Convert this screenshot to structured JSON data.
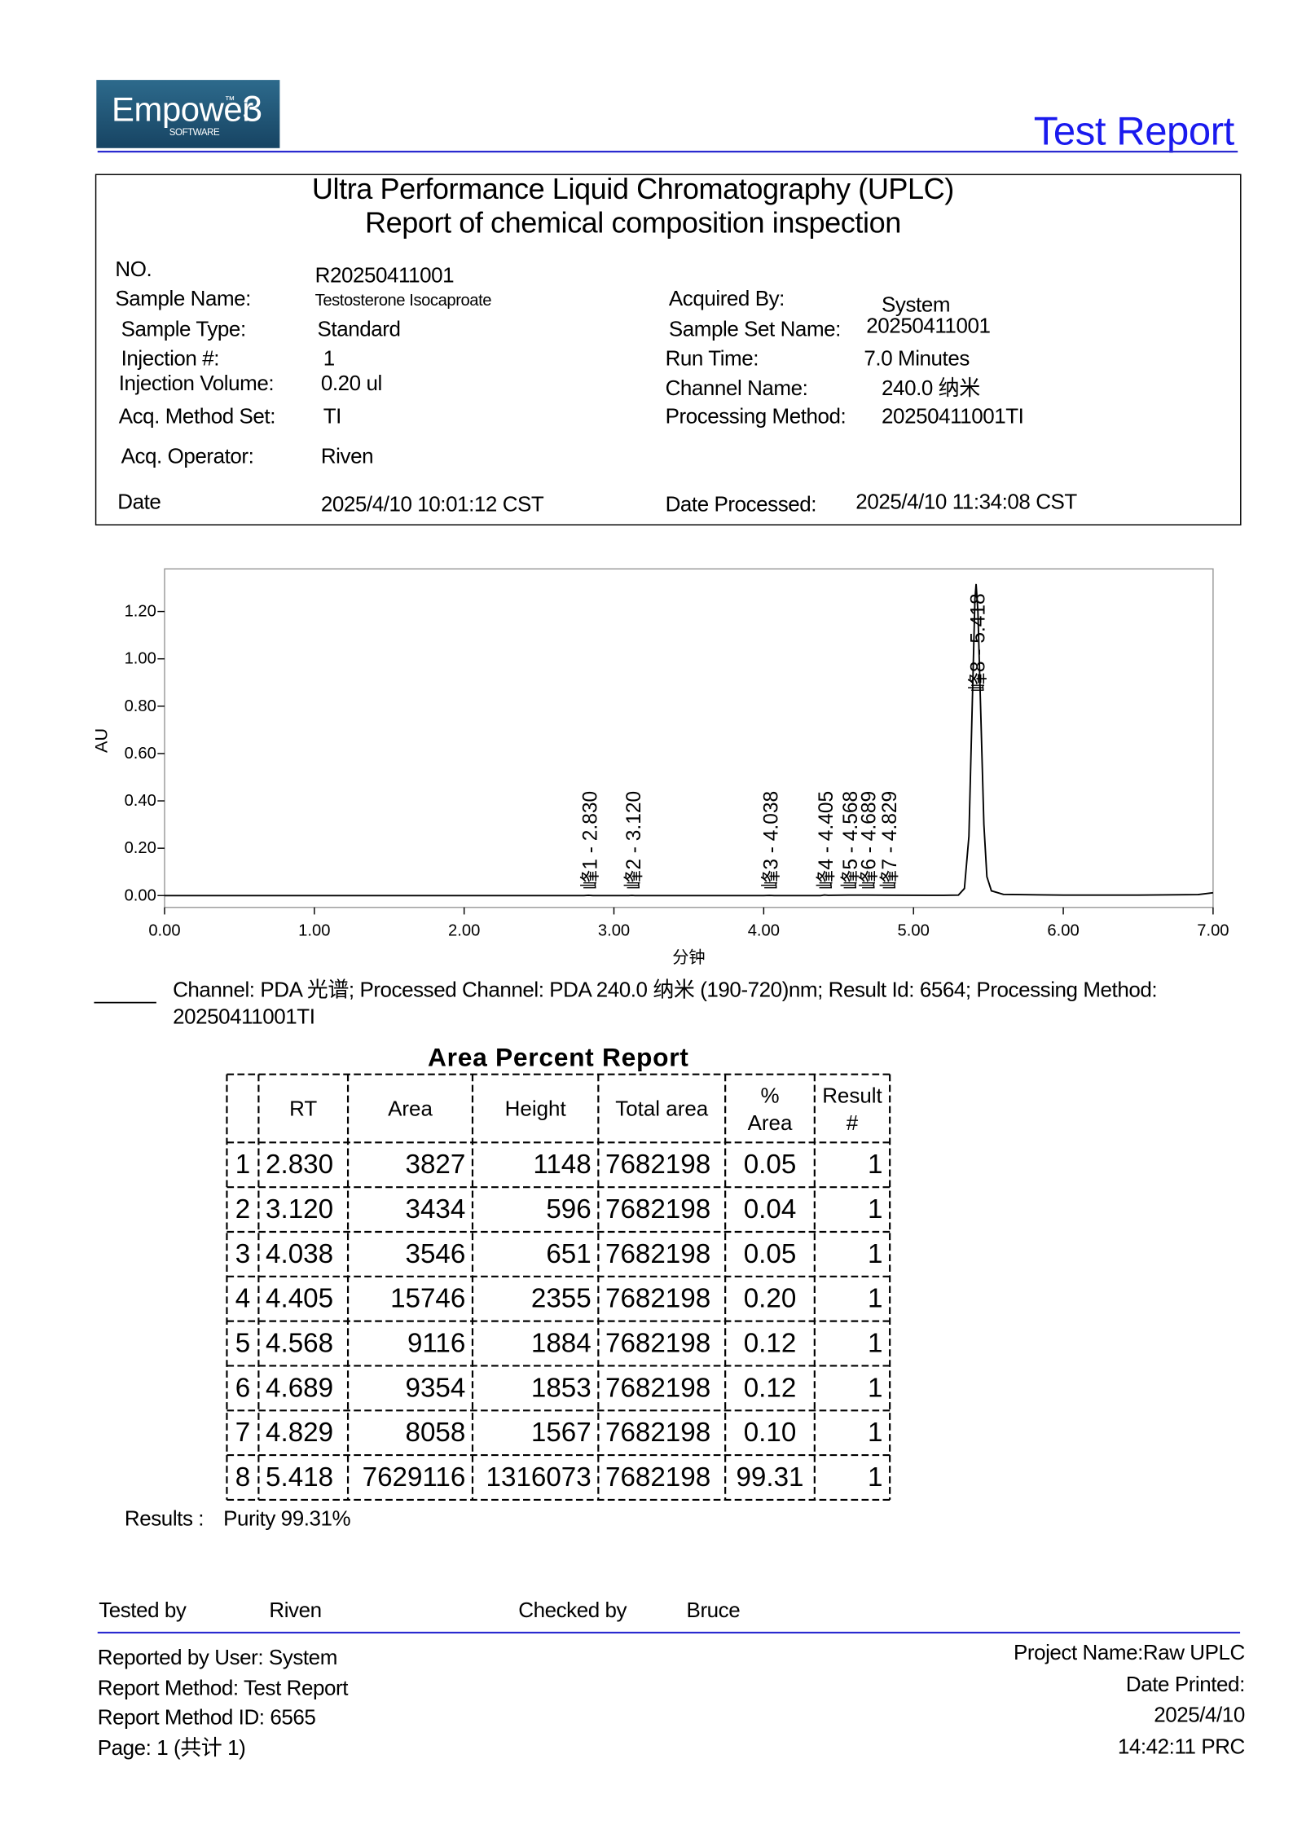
{
  "header": {
    "logo": {
      "name": "Empower",
      "tm": "™",
      "version": "3",
      "sub": "SOFTWARE"
    },
    "title": "Test Report"
  },
  "report": {
    "title_lines": [
      "Ultra Performance Liquid Chromatography (UPLC)",
      "Report of chemical composition inspection"
    ],
    "fields_left": [
      {
        "label": "NO.",
        "value": "R20250411001"
      },
      {
        "label": "Sample Name:",
        "value": "Testosterone Isocaproate"
      },
      {
        "label": "Sample Type:",
        "value": "Standard"
      },
      {
        "label": "Injection #:",
        "value": "1"
      },
      {
        "label": "Injection Volume:",
        "value": "0.20 ul"
      },
      {
        "label": "Acq. Method Set:",
        "value": "TI"
      },
      {
        "label": "Acq. Operator:",
        "value": "Riven"
      },
      {
        "label": "Date",
        "value": "2025/4/10 10:01:12 CST"
      }
    ],
    "fields_right": [
      {
        "label": "Acquired By:",
        "value": "System"
      },
      {
        "label": "Sample Set Name:",
        "value": "20250411001"
      },
      {
        "label": "Run Time:",
        "value": "7.0 Minutes"
      },
      {
        "label": "Channel Name:",
        "value": "240.0 纳米"
      },
      {
        "label": "Processing Method:",
        "value": "20250411001TI"
      },
      {
        "label": "Date Processed:",
        "value": "2025/4/10 11:34:08 CST"
      }
    ]
  },
  "chart_data": {
    "type": "line",
    "x_label": "分钟",
    "y_label": "AU",
    "xlim": [
      0,
      7
    ],
    "ylim": [
      -0.05,
      1.38
    ],
    "xticks": [
      {
        "value": 0,
        "label": "0.00"
      },
      {
        "value": 1,
        "label": "1.00"
      },
      {
        "value": 2,
        "label": "2.00"
      },
      {
        "value": 3,
        "label": "3.00"
      },
      {
        "value": 4,
        "label": "4.00"
      },
      {
        "value": 5,
        "label": "5.00"
      },
      {
        "value": 6,
        "label": "6.00"
      },
      {
        "value": 7,
        "label": "7.00"
      }
    ],
    "yticks": [
      {
        "value": 0,
        "label": "0.00"
      },
      {
        "value": 0.2,
        "label": "0.20"
      },
      {
        "value": 0.4,
        "label": "0.40"
      },
      {
        "value": 0.6,
        "label": "0.60"
      },
      {
        "value": 0.8,
        "label": "0.80"
      },
      {
        "value": 1,
        "label": "1.00"
      },
      {
        "value": 1.2,
        "label": "1.20"
      }
    ],
    "x": [
      0,
      1,
      2,
      2.8,
      2.83,
      2.86,
      3.1,
      3.12,
      3.14,
      4.0,
      4.038,
      4.07,
      4.38,
      4.405,
      4.43,
      4.568,
      4.689,
      4.829,
      5.2,
      5.3,
      5.34,
      5.37,
      5.39,
      5.41,
      5.418,
      5.43,
      5.45,
      5.47,
      5.49,
      5.52,
      5.6,
      6.0,
      6.5,
      6.9,
      7.0
    ],
    "series": [
      {
        "name": "Channel: PDA 光谱;  Processed Channel:  PDA 240.0 纳米 (190-720)nm;  Result Id:  6564;  Processing Method: 20250411001TI",
        "color": "#000000",
        "values": [
          0,
          0,
          0,
          0,
          0.0011,
          0,
          0,
          0.0006,
          0,
          0,
          0.0007,
          0,
          0,
          0.0024,
          0.001,
          0.0019,
          0.0019,
          0.0016,
          0.001,
          0.002,
          0.03,
          0.25,
          0.75,
          1.25,
          1.316,
          1.2,
          0.75,
          0.3,
          0.08,
          0.02,
          0.005,
          0.002,
          0.002,
          0.004,
          0.012
        ]
      }
    ],
    "annotations": [
      {
        "text": "峰1 - 2.830",
        "x": 2.83
      },
      {
        "text": "峰2 - 3.120",
        "x": 3.12
      },
      {
        "text": "峰3 - 4.038",
        "x": 4.038
      },
      {
        "text": "峰4 - 4.405",
        "x": 4.405
      },
      {
        "text": "峰5 - 4.568",
        "x": 4.568
      },
      {
        "text": "峰6 - 4.689",
        "x": 4.689
      },
      {
        "text": "峰7 - 4.829",
        "x": 4.829
      },
      {
        "text": "峰8 - 5.418",
        "x": 5.418
      }
    ]
  },
  "area_report": {
    "title": "Area Percent Report",
    "headers": [
      "RT",
      "Area",
      "Height",
      "Total area",
      "% Area",
      "Result #"
    ],
    "rows": [
      [
        "1",
        "2.830",
        "3827",
        "1148",
        "7682198",
        "0.05",
        "1"
      ],
      [
        "2",
        "3.120",
        "3434",
        "596",
        "7682198",
        "0.04",
        "1"
      ],
      [
        "3",
        "4.038",
        "3546",
        "651",
        "7682198",
        "0.05",
        "1"
      ],
      [
        "4",
        "4.405",
        "15746",
        "2355",
        "7682198",
        "0.20",
        "1"
      ],
      [
        "5",
        "4.568",
        "9116",
        "1884",
        "7682198",
        "0.12",
        "1"
      ],
      [
        "6",
        "4.689",
        "9354",
        "1853",
        "7682198",
        "0.12",
        "1"
      ],
      [
        "7",
        "4.829",
        "8058",
        "1567",
        "7682198",
        "0.10",
        "1"
      ],
      [
        "8",
        "5.418",
        "7629116",
        "1316073",
        "7682198",
        "99.31",
        "1"
      ]
    ]
  },
  "results": {
    "label": "Results :",
    "value": "Purity 99.31%"
  },
  "signatures": {
    "tested_label": "Tested by",
    "tested_name": "Riven",
    "checked_label": "Checked by",
    "checked_name": "Bruce"
  },
  "footer": {
    "left": [
      "Reported by User:  System",
      "Report Method:  Test Report",
      "Report Method ID: 6565",
      "Page: 1 (共计 1)"
    ],
    "right": [
      "Project Name:Raw  UPLC",
      "Date Printed:",
      "2025/4/10",
      "14:42:11 PRC"
    ]
  }
}
